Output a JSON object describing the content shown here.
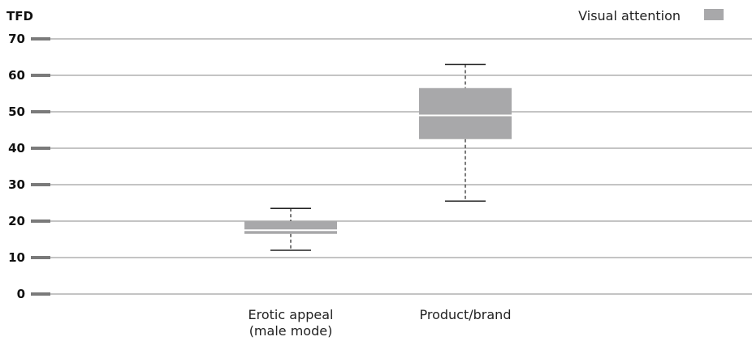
{
  "chart_data": {
    "type": "boxplot",
    "ylabel": "TFD",
    "ylim": [
      0,
      70
    ],
    "yticks": [
      0,
      10,
      20,
      30,
      40,
      50,
      60,
      70
    ],
    "grid": true,
    "legend": {
      "label": "Visual attention",
      "position": "top-right",
      "color": "#a8a8aa"
    },
    "categories": [
      {
        "label_lines": [
          "Erotic appeal",
          "(male mode)"
        ],
        "min": 12,
        "q1": 16.5,
        "median": 17.5,
        "q3": 20,
        "max": 23.5
      },
      {
        "label_lines": [
          "Product/brand"
        ],
        "min": 25.5,
        "q1": 42.5,
        "median": 49,
        "q3": 56.5,
        "max": 63
      }
    ],
    "colors": {
      "box": "#a8a8aa",
      "grid": "#8a8a8a",
      "tick": "#7a7a7a",
      "median": "#ffffff",
      "whisker": "#222222"
    }
  }
}
